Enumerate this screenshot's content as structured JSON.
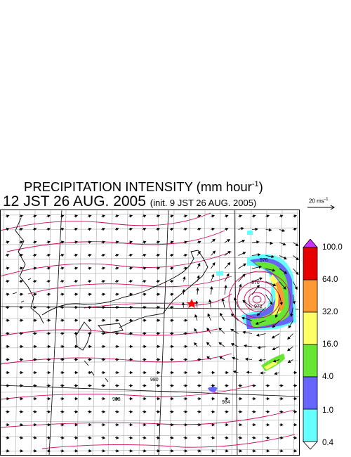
{
  "header": {
    "title_main": "PRECIPITATION INTENSITY (mm hour",
    "title_exp": "-1",
    "title_close": ")",
    "datetime": "12 JST 26 AUG. 2005",
    "init": "(init. 9 JST 26 AUG. 2005)"
  },
  "reference_vector": {
    "label": "20 ms",
    "exp": "-1"
  },
  "map": {
    "marker": {
      "symbol": "star",
      "color": "#ff0000"
    },
    "isobar_labels": [
      "976",
      "970",
      "972",
      "984",
      "980",
      "983"
    ],
    "colors": {
      "isobar": "#d40a5a",
      "grid": "#a8a8a8",
      "coast": "#000000",
      "frame": "#000000"
    }
  },
  "colorbar": {
    "labels": [
      "100.0",
      "64.0",
      "32.0",
      "16.0",
      "4.0",
      "1.0",
      "0.4"
    ],
    "colors": [
      "#cc33ff",
      "#e60000",
      "#ff9933",
      "#ffff66",
      "#66e633",
      "#6666ff",
      "#66ffff",
      "#ffffff"
    ]
  }
}
